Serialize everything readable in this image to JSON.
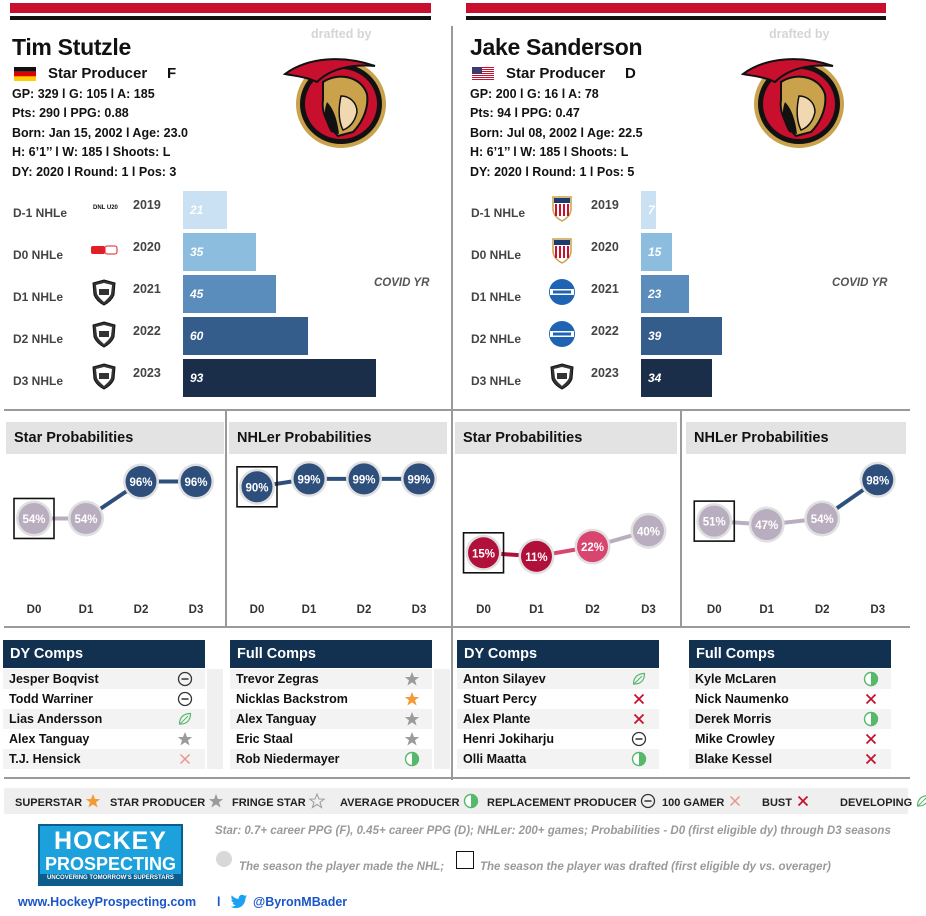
{
  "players": [
    {
      "name": "Tim Stutzle",
      "role": "Star Producer",
      "position": "F",
      "flag": "germany-flag",
      "drafted_by": "drafted by",
      "stats": [
        "GP: 329 l G: 105 l A: 185",
        "Pts: 290 l PPG: 0.88",
        "Born: Jan 15, 2002 l Age: 23.0",
        "H: 6’1’’ l W: 185 l Shoots: L",
        "DY: 2020 l Round: 1 l Pos: 3"
      ],
      "covid": "COVID YR",
      "seasons": [
        {
          "label": "D-1 NHLe",
          "year": "2019",
          "value": 21,
          "display": "21",
          "color": "#c9e1f2",
          "league": "DNL U20"
        },
        {
          "label": "D0 NHLe",
          "year": "2020",
          "value": 35,
          "display": "35",
          "color": "#8cbddf",
          "league": "DEL"
        },
        {
          "label": "D1 NHLe",
          "year": "2021",
          "value": 45,
          "display": "45",
          "color": "#5a8cbc",
          "league": "NHL"
        },
        {
          "label": "D2 NHLe",
          "year": "2022",
          "value": 60,
          "display": "60",
          "color": "#355d8c",
          "league": "NHL"
        },
        {
          "label": "D3 NHLe",
          "year": "2023",
          "value": 93,
          "display": "93",
          "color": "#1a2e4a",
          "league": "NHL"
        }
      ],
      "star_title": "Star Probabilities",
      "star_probs": [
        {
          "x": "D0",
          "v": 54,
          "display": "54%",
          "color": "#b9aebf"
        },
        {
          "x": "D1",
          "v": 54,
          "display": "54%",
          "color": "#b9aebf"
        },
        {
          "x": "D2",
          "v": 96,
          "display": "96%",
          "color": "#2e4f7c"
        },
        {
          "x": "D3",
          "v": 96,
          "display": "96%",
          "color": "#2e4f7c"
        }
      ],
      "star_drafted_index": 0,
      "nhl_title": "NHLer Probabilities",
      "nhl_probs": [
        {
          "x": "D0",
          "v": 90,
          "display": "90%",
          "color": "#2e4f7c"
        },
        {
          "x": "D1",
          "v": 99,
          "display": "99%",
          "color": "#2e4f7c"
        },
        {
          "x": "D2",
          "v": 99,
          "display": "99%",
          "color": "#2e4f7c"
        },
        {
          "x": "D3",
          "v": 99,
          "display": "99%",
          "color": "#2e4f7c"
        }
      ],
      "nhl_drafted_index": 0,
      "dy_comps_title": "DY Comps",
      "dy_comps": [
        {
          "name": "Jesper Boqvist",
          "icon": "replacement"
        },
        {
          "name": "Todd Warriner",
          "icon": "replacement"
        },
        {
          "name": "Lias Andersson",
          "icon": "developing"
        },
        {
          "name": "Alex Tanguay",
          "icon": "star"
        },
        {
          "name": "T.J. Hensick",
          "icon": "gamer100"
        }
      ],
      "full_comps_title": "Full Comps",
      "full_comps": [
        {
          "name": "Trevor Zegras",
          "icon": "star"
        },
        {
          "name": "Nicklas Backstrom",
          "icon": "superstar"
        },
        {
          "name": "Alex Tanguay",
          "icon": "star"
        },
        {
          "name": "Eric Staal",
          "icon": "star"
        },
        {
          "name": "Rob Niedermayer",
          "icon": "average"
        }
      ]
    },
    {
      "name": "Jake Sanderson",
      "role": "Star Producer",
      "position": "D",
      "flag": "usa-flag",
      "drafted_by": "drafted by",
      "stats": [
        "GP: 200 l G: 16 l A: 78",
        "Pts: 94 l PPG: 0.47",
        "Born: Jul 08, 2002 l Age: 22.5",
        "H: 6’1’’ l W: 185 l Shoots: L",
        "DY: 2020 l Round: 1 l Pos: 5"
      ],
      "covid": "COVID YR",
      "seasons": [
        {
          "label": "D-1 NHLe",
          "year": "2019",
          "value": 7,
          "display": "7",
          "color": "#c9e1f2",
          "league": "NTDP"
        },
        {
          "label": "D0 NHLe",
          "year": "2020",
          "value": 15,
          "display": "15",
          "color": "#8cbddf",
          "league": "NTDP"
        },
        {
          "label": "D1 NHLe",
          "year": "2021",
          "value": 23,
          "display": "23",
          "color": "#5a8cbc",
          "league": "NCAA"
        },
        {
          "label": "D2 NHLe",
          "year": "2022",
          "value": 39,
          "display": "39",
          "color": "#355d8c",
          "league": "NCAA"
        },
        {
          "label": "D3 NHLe",
          "year": "2023",
          "value": 34,
          "display": "34",
          "color": "#1a2e4a",
          "league": "NHL"
        }
      ],
      "star_title": "Star Probabilities",
      "star_probs": [
        {
          "x": "D0",
          "v": 15,
          "display": "15%",
          "color": "#b0103a"
        },
        {
          "x": "D1",
          "v": 11,
          "display": "11%",
          "color": "#b0103a"
        },
        {
          "x": "D2",
          "v": 22,
          "display": "22%",
          "color": "#d8456e"
        },
        {
          "x": "D3",
          "v": 40,
          "display": "40%",
          "color": "#b9aebf"
        }
      ],
      "star_drafted_index": 0,
      "nhl_title": "NHLer Probabilities",
      "nhl_probs": [
        {
          "x": "D0",
          "v": 51,
          "display": "51%",
          "color": "#b9aebf"
        },
        {
          "x": "D1",
          "v": 47,
          "display": "47%",
          "color": "#b9aebf"
        },
        {
          "x": "D2",
          "v": 54,
          "display": "54%",
          "color": "#b9aebf"
        },
        {
          "x": "D3",
          "v": 98,
          "display": "98%",
          "color": "#2e4f7c"
        }
      ],
      "nhl_drafted_index": 0,
      "dy_comps_title": "DY Comps",
      "dy_comps": [
        {
          "name": "Anton Silayev",
          "icon": "developing"
        },
        {
          "name": "Stuart Percy",
          "icon": "bust"
        },
        {
          "name": "Alex Plante",
          "icon": "bust"
        },
        {
          "name": "Henri Jokiharju",
          "icon": "replacement"
        },
        {
          "name": "Olli Maatta",
          "icon": "average"
        }
      ],
      "full_comps_title": "Full Comps",
      "full_comps": [
        {
          "name": "Kyle McLaren",
          "icon": "average"
        },
        {
          "name": "Nick Naumenko",
          "icon": "bust"
        },
        {
          "name": "Derek Morris",
          "icon": "average"
        },
        {
          "name": "Mike Crowley",
          "icon": "bust"
        },
        {
          "name": "Blake Kessel",
          "icon": "bust"
        }
      ]
    }
  ],
  "legend": [
    {
      "label": "SUPERSTAR",
      "icon": "superstar"
    },
    {
      "label": "STAR PRODUCER",
      "icon": "star"
    },
    {
      "label": "FRINGE STAR",
      "icon": "fringe"
    },
    {
      "label": "AVERAGE PRODUCER",
      "icon": "average"
    },
    {
      "label": "REPLACEMENT PRODUCER",
      "icon": "replacement"
    },
    {
      "label": "100 GAMER",
      "icon": "gamer100"
    },
    {
      "label": "BUST",
      "icon": "bust"
    },
    {
      "label": "DEVELOPING",
      "icon": "developing"
    }
  ],
  "footer": {
    "logo_top": "HOCKEY",
    "logo_bottom": "PROSPECTING",
    "logo_tag": "UNCOVERING TOMORROW'S SUPERSTARS",
    "note1": "Star: 0.7+ career PPG (F), 0.45+ career PPG (D); NHLer: 200+ games; Probabilities - D0 (first eligible dy) through D3 seasons",
    "note2": "The season the player made the NHL;",
    "note3": "The season the player was drafted (first eligible dy vs. overager)",
    "website": "www.HockeyProspecting.com",
    "sep": "l",
    "twitter": "@ByronMBader"
  },
  "colors": {
    "red": "#c8102e",
    "navy": "#12304f"
  }
}
